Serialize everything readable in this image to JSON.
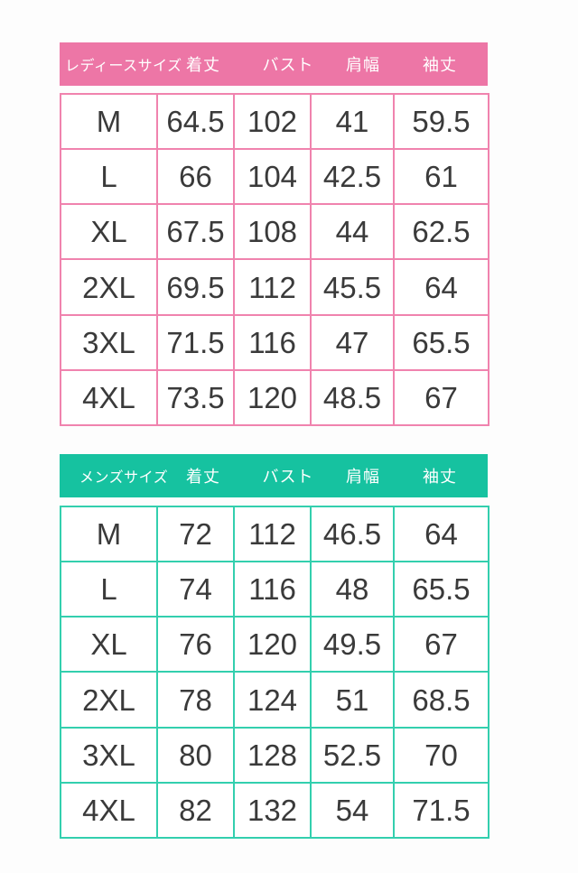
{
  "colors": {
    "background": "#fdfdfd",
    "ladies_header_bg": "#ed76a6",
    "ladies_border": "#f083ae",
    "mens_header_bg": "#16c2a0",
    "mens_border": "#33cfae",
    "header_text": "#ffffff",
    "cell_text": "#3a3a3a"
  },
  "chart_data": [
    {
      "type": "table",
      "name": "ladies-size-table",
      "title": "レディースサイズ",
      "columns": [
        "レディースサイズ",
        "着丈",
        "バスト",
        "肩幅",
        "袖丈"
      ],
      "rows": [
        [
          "M",
          "64.5",
          "102",
          "41",
          "59.5"
        ],
        [
          "L",
          "66",
          "104",
          "42.5",
          "61"
        ],
        [
          "XL",
          "67.5",
          "108",
          "44",
          "62.5"
        ],
        [
          "2XL",
          "69.5",
          "112",
          "45.5",
          "64"
        ],
        [
          "3XL",
          "71.5",
          "116",
          "47",
          "65.5"
        ],
        [
          "4XL",
          "73.5",
          "120",
          "48.5",
          "67"
        ]
      ]
    },
    {
      "type": "table",
      "name": "mens-size-table",
      "title": "メンズサイズ",
      "columns": [
        "メンズサイズ",
        "着丈",
        "バスト",
        "肩幅",
        "袖丈"
      ],
      "rows": [
        [
          "M",
          "72",
          "112",
          "46.5",
          "64"
        ],
        [
          "L",
          "74",
          "116",
          "48",
          "65.5"
        ],
        [
          "XL",
          "76",
          "120",
          "49.5",
          "67"
        ],
        [
          "2XL",
          "78",
          "124",
          "51",
          "68.5"
        ],
        [
          "3XL",
          "80",
          "128",
          "52.5",
          "70"
        ],
        [
          "4XL",
          "82",
          "132",
          "54",
          "71.5"
        ]
      ]
    }
  ]
}
